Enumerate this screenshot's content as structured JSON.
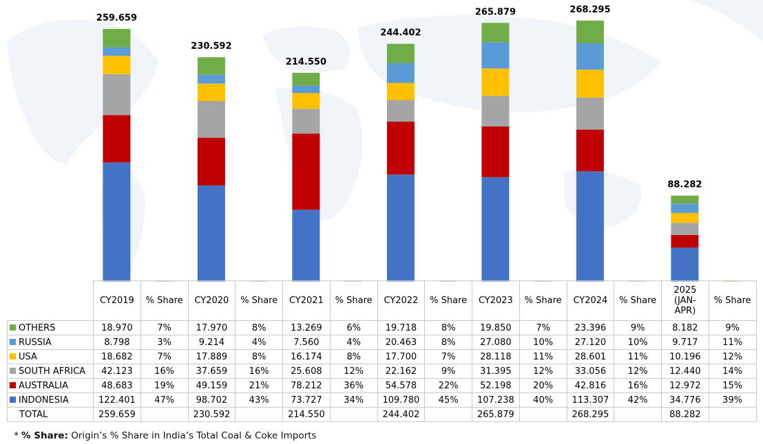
{
  "chart_data": {
    "type": "bar",
    "stacked": true,
    "categories": [
      "CY2019",
      "CY2020",
      "CY2021",
      "CY2022",
      "CY2023",
      "CY2024",
      "2025 (JAN-APR)"
    ],
    "share_header": "% Share",
    "series": [
      {
        "name": "INDONESIA",
        "color": "#4472c4",
        "values": [
          122.401,
          98.702,
          73.727,
          109.78,
          107.238,
          113.307,
          34.776
        ],
        "labels": [
          "122.401",
          "98.702",
          "73.727",
          "109.780",
          "107.238",
          "113.307",
          "34.776"
        ],
        "shares": [
          "47%",
          "43%",
          "34%",
          "45%",
          "40%",
          "42%",
          "39%"
        ]
      },
      {
        "name": "AUSTRALIA",
        "color": "#c00000",
        "values": [
          48.683,
          49.159,
          78.212,
          54.578,
          52.198,
          42.816,
          12.972
        ],
        "labels": [
          "48.683",
          "49.159",
          "78.212",
          "54.578",
          "52.198",
          "42.816",
          "12.972"
        ],
        "shares": [
          "19%",
          "21%",
          "36%",
          "22%",
          "20%",
          "16%",
          "15%"
        ]
      },
      {
        "name": "SOUTH AFRICA",
        "color": "#a5a5a5",
        "values": [
          42.123,
          37.659,
          25.608,
          22.162,
          31.395,
          33.056,
          12.44
        ],
        "labels": [
          "42.123",
          "37.659",
          "25.608",
          "22.162",
          "31.395",
          "33.056",
          "12.440"
        ],
        "shares": [
          "16%",
          "16%",
          "12%",
          "9%",
          "12%",
          "12%",
          "14%"
        ]
      },
      {
        "name": "USA",
        "color": "#ffc000",
        "values": [
          18.682,
          17.889,
          16.174,
          17.7,
          28.118,
          28.601,
          10.196
        ],
        "labels": [
          "18.682",
          "17.889",
          "16.174",
          "17.700",
          "28.118",
          "28.601",
          "10.196"
        ],
        "shares": [
          "7%",
          "8%",
          "8%",
          "7%",
          "11%",
          "11%",
          "12%"
        ]
      },
      {
        "name": "RUSSIA",
        "color": "#5b9bd5",
        "values": [
          8.798,
          9.214,
          7.56,
          20.463,
          27.08,
          27.12,
          9.717
        ],
        "labels": [
          "8.798",
          "9.214",
          "7.560",
          "20.463",
          "27.080",
          "27.120",
          "9.717"
        ],
        "shares": [
          "3%",
          "4%",
          "4%",
          "8%",
          "10%",
          "10%",
          "11%"
        ]
      },
      {
        "name": "OTHERS",
        "color": "#70ad47",
        "values": [
          18.97,
          17.97,
          13.269,
          19.718,
          19.85,
          23.396,
          8.182
        ],
        "labels": [
          "18.970",
          "17.970",
          "13.269",
          "19.718",
          "19.850",
          "23.396",
          "8.182"
        ],
        "shares": [
          "7%",
          "8%",
          "6%",
          "8%",
          "7%",
          "9%",
          "9%"
        ]
      }
    ],
    "totals": {
      "name": "TOTAL",
      "values": [
        259.659,
        230.592,
        214.55,
        244.402,
        265.879,
        268.295,
        88.282
      ],
      "labels": [
        "259.659",
        "230.592",
        "214.550",
        "244.402",
        "265.879",
        "268.295",
        "88.282"
      ]
    },
    "legend_order": [
      "OTHERS",
      "RUSSIA",
      "USA",
      "SOUTH AFRICA",
      "AUSTRALIA",
      "INDONESIA"
    ],
    "ylim": [
      0,
      270
    ],
    "grid": false,
    "legend": "data-table"
  },
  "footnote": {
    "prefix": "* ",
    "bold": "% Share:",
    "text": " Origin’s % Share in India’s Total Coal & Coke Imports"
  }
}
